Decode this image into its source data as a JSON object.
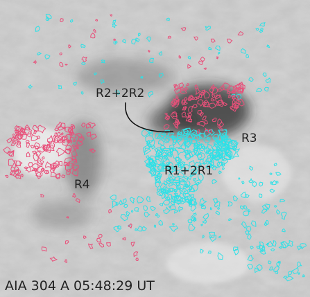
{
  "labels": [
    "R2+2R2",
    "R3",
    "R1+2R1",
    "R4"
  ],
  "caption": "AIA 304 A  05:48:29 UT"
}
